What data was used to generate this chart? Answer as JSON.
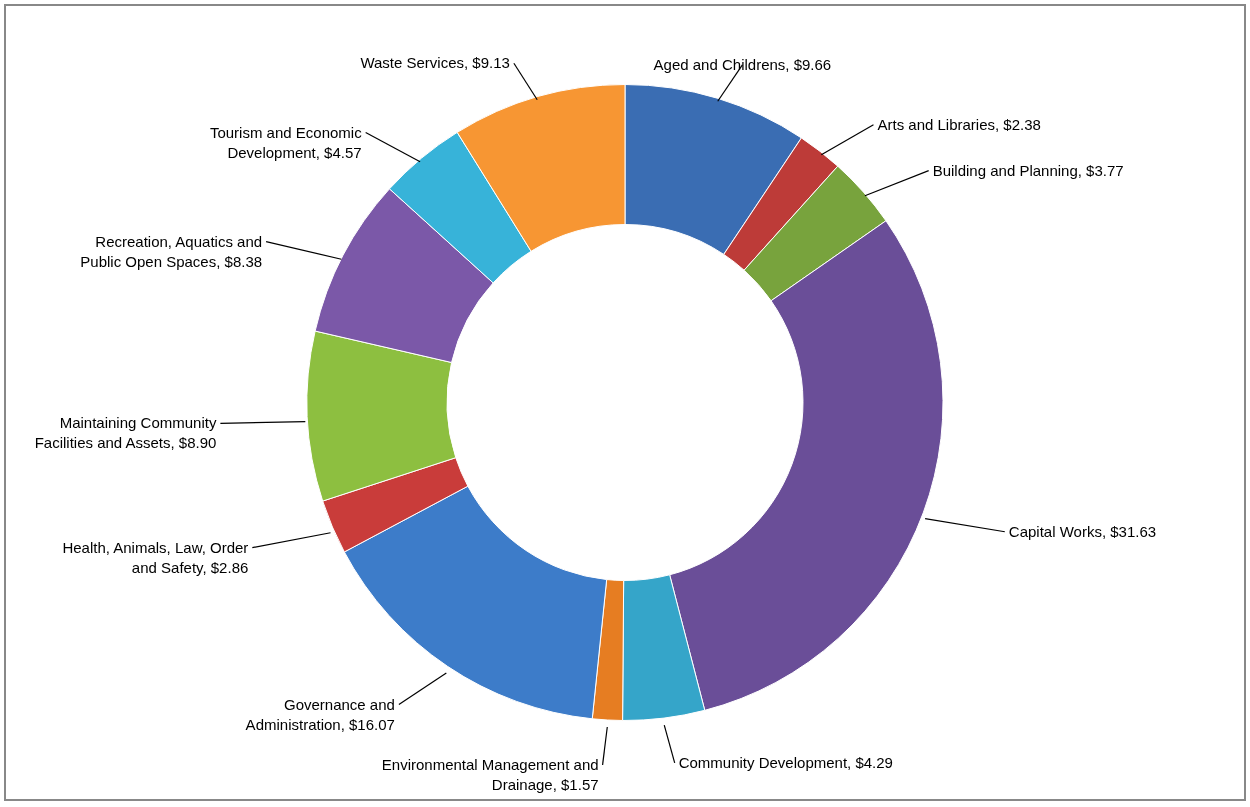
{
  "chart_data": {
    "type": "donut",
    "categories": [
      "Aged and Childrens",
      "Arts and Libraries",
      "Building and Planning",
      "Capital Works",
      "Community Development",
      "Environmental Management and Drainage",
      "Governance and Administration",
      "Health, Animals, Law, Order and Safety",
      "Maintaining Community Facilities and Assets",
      "Recreation, Aquatics and Public Open Spaces",
      "Tourism and Economic Development",
      "Waste Services"
    ],
    "values": [
      9.66,
      2.38,
      3.77,
      31.63,
      4.29,
      1.57,
      16.07,
      2.86,
      8.9,
      8.38,
      4.57,
      9.13
    ],
    "value_labels": [
      "$9.66",
      "$2.38",
      "$3.77",
      "$31.63",
      "$4.29",
      "$1.57",
      "$16.07",
      "$2.86",
      "$8.90",
      "$8.38",
      "$4.57",
      "$9.13"
    ],
    "colors": [
      "#3a6db3",
      "#bd3b38",
      "#78a33d",
      "#6a4e98",
      "#35a5c9",
      "#e67d22",
      "#3d7cc9",
      "#c93c3a",
      "#8dbf40",
      "#7b58a8",
      "#37b3d9",
      "#f79633"
    ]
  }
}
